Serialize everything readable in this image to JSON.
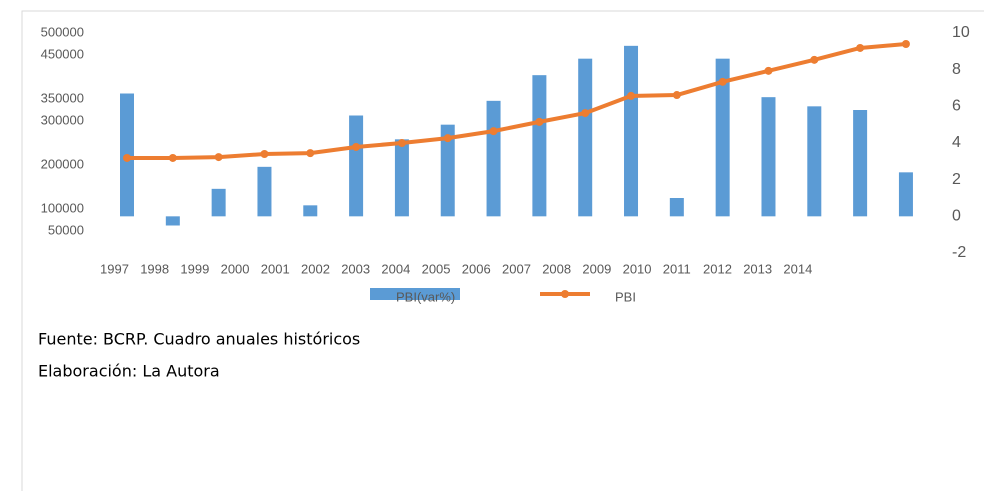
{
  "chart_data": {
    "type": "bar",
    "categories": [
      "1997",
      "1998",
      "1999",
      "2000",
      "2001",
      "2002",
      "2003",
      "2004",
      "2005",
      "2006",
      "2007",
      "2008",
      "2009",
      "2010",
      "2011",
      "2012",
      "2013",
      "2014"
    ],
    "series": [
      {
        "name": "PBI(var%)",
        "type": "bar",
        "color": "#5b9bd5",
        "axis": "y2",
        "values": [
          6.7,
          -0.5,
          1.5,
          2.7,
          0.6,
          5.5,
          4.2,
          5.0,
          6.3,
          7.7,
          8.6,
          9.3,
          1.0,
          8.6,
          6.5,
          6.0,
          5.8,
          2.4
        ]
      },
      {
        "name": "PBI",
        "type": "line",
        "color": "#ed7d31",
        "values": [
          216000,
          216000,
          218000,
          225000,
          227000,
          241000,
          250000,
          261000,
          277000,
          298000,
          318000,
          357000,
          359000,
          389000,
          414000,
          439000,
          466000,
          475000
        ]
      }
    ],
    "ylim": [
      0,
      500000
    ],
    "yticks": [
      50000,
      100000,
      200000,
      300000,
      350000,
      450000,
      500000
    ],
    "y2lim": [
      -2,
      10
    ],
    "y2ticks": [
      -2,
      0,
      2,
      4,
      6,
      8,
      10
    ],
    "legend": "bottom"
  },
  "source": "Fuente: BCRP. Cuadro anuales históricos",
  "credit": "Elaboración: La Autora"
}
